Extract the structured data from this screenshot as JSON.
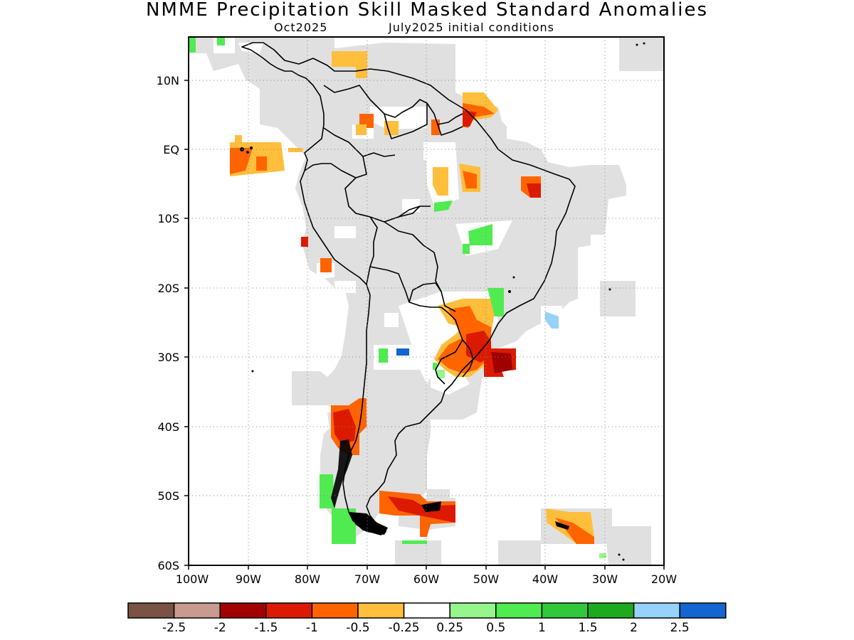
{
  "header": {
    "title": "NMME Precipitation Skill Masked Standard Anomalies",
    "target_month": "Oct2025",
    "initial_conditions": "July2025 initial conditions"
  },
  "map": {
    "region": "South America",
    "lon_range": [
      -100,
      -20
    ],
    "lat_range": [
      -60,
      6
    ],
    "x_ticks": [
      "100W",
      "90W",
      "80W",
      "70W",
      "60W",
      "50W",
      "40W",
      "30W",
      "20W"
    ],
    "y_ticks": [
      "10N",
      "EQ",
      "10S",
      "20S",
      "30S",
      "40S",
      "50S",
      "60S"
    ],
    "grid": true,
    "mask_color": "#e0e0e0"
  },
  "colorbar": {
    "colors": [
      "#7a5246",
      "#c89a90",
      "#a00000",
      "#dc1a00",
      "#ff6400",
      "#ffbe3c",
      "#ffffff",
      "#96f58c",
      "#50eb50",
      "#32c83c",
      "#1eaa1e",
      "#96d2fa",
      "#1464d2"
    ],
    "labels": [
      "-2.5",
      "-2",
      "-1.5",
      "-1",
      "-0.5",
      "-0.25",
      "0.25",
      "0.5",
      "1",
      "1.5",
      "2",
      "2.5"
    ]
  },
  "anomaly_patches": [
    {
      "label": "Northern Colombia/Venezuela coast",
      "value": -0.25
    },
    {
      "label": "Guianas coast",
      "value": -1.5
    },
    {
      "label": "Ecuador offshore",
      "value": -0.25
    },
    {
      "label": "Northeast Brazil",
      "value": -1
    },
    {
      "label": "Central Brazil",
      "value": 1
    },
    {
      "label": "Southern Brazil / Uruguay",
      "value": -1.5
    },
    {
      "label": "Southern Chile",
      "value": -1
    },
    {
      "label": "Patagonia Atlantic shelf",
      "value": -1
    },
    {
      "label": "Southwest Chile offshore",
      "value": 1
    },
    {
      "label": "South Georgia area",
      "value": -1
    },
    {
      "label": "Southeast Brazil offshore",
      "value": 2
    },
    {
      "label": "Northern Argentina",
      "value": 2.5
    }
  ]
}
